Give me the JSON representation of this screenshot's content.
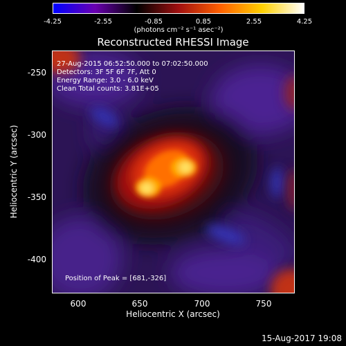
{
  "colorbar": {
    "ticks": [
      "-4.25",
      "-2.55",
      "-0.85",
      "0.85",
      "2.55",
      "4.25"
    ],
    "units": "(photons cm⁻² s⁻¹ asec⁻²)",
    "colors": [
      "#0000ff",
      "#6a00b0",
      "#000000",
      "#a01010",
      "#ff6000",
      "#ffd000",
      "#ffffff"
    ]
  },
  "title": "Reconstructed RHESSI Image",
  "annotations": {
    "time_range": "27-Aug-2015 06:52:50.000 to 07:02:50.000",
    "detectors": "Detectors: 3F 5F 6F 7F, Att 0",
    "energy": "Energy Range: 3.0 - 6.0 keV",
    "algorithm": "Clean    Total counts: 3.81E+05",
    "peak": "Position of Peak = [681,-326]"
  },
  "axes": {
    "xlabel": "Heliocentric X (arcsec)",
    "ylabel": "Heliocentric Y (arcsec)",
    "xticks": [
      "600",
      "650",
      "700",
      "750"
    ],
    "yticks": [
      "-250",
      "-300",
      "-350",
      "-400"
    ]
  },
  "footer": "15-Aug-2017 19:08"
}
